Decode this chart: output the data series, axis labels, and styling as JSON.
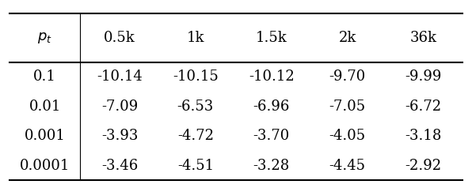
{
  "col_header": [
    "$p_t$",
    "0.5k",
    "1k",
    "1.5k",
    "2k",
    "36k"
  ],
  "rows": [
    [
      "0.1",
      "-10.14",
      "-10.15",
      "-10.12",
      "-9.70",
      "-9.99"
    ],
    [
      "0.01",
      "-7.09",
      "-6.53",
      "-6.96",
      "-7.05",
      "-6.72"
    ],
    [
      "0.001",
      "-3.93",
      "-4.72",
      "-3.70",
      "-4.05",
      "-3.18"
    ],
    [
      "0.0001",
      "-3.46",
      "-4.51",
      "-3.28",
      "-4.45",
      "-2.92"
    ]
  ],
  "background_color": "#ffffff",
  "text_color": "#000000",
  "font_size": 13
}
